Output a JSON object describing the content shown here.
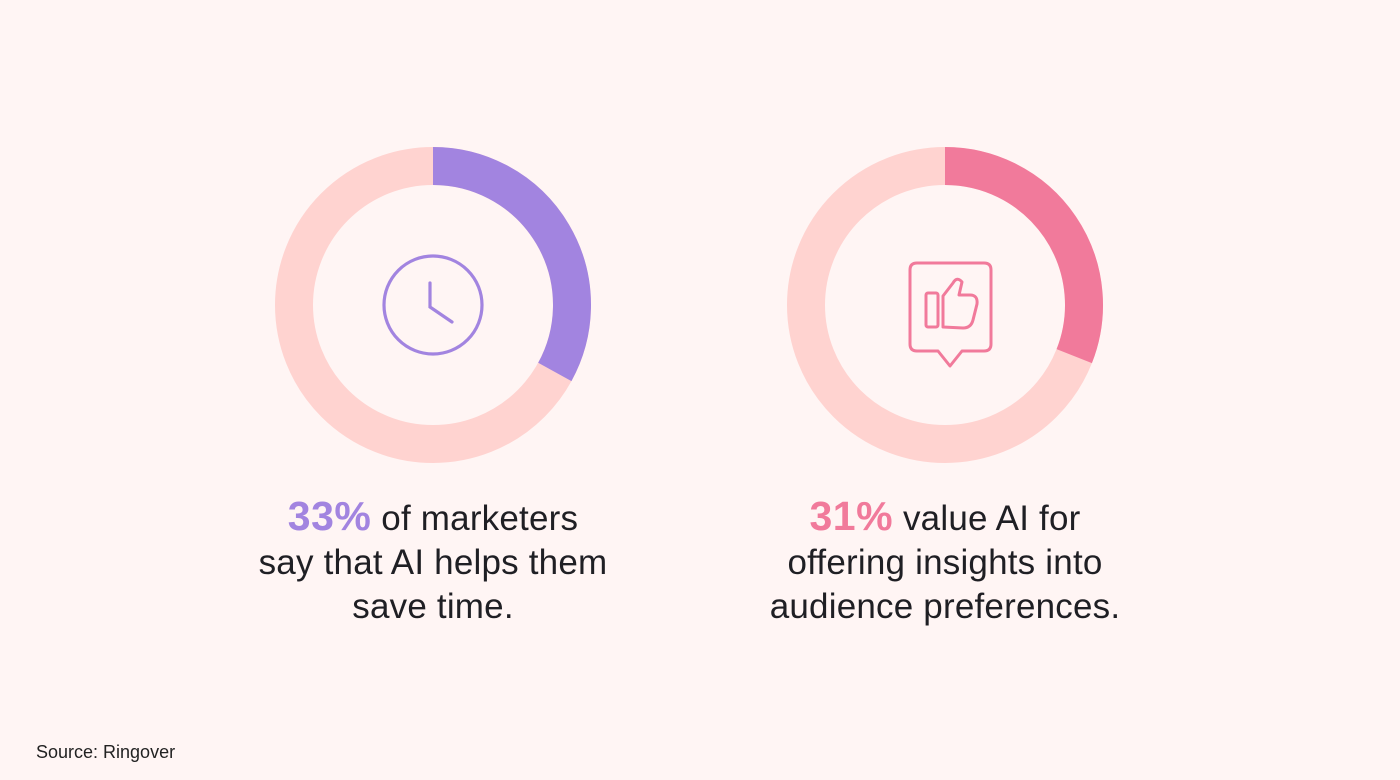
{
  "chart_data": [
    {
      "type": "pie",
      "value": 33,
      "categories": [
        "33%"
      ],
      "values": [
        33
      ],
      "accent_color": "#a284e0",
      "track_color": "#ffd3d0",
      "icon": "clock-icon",
      "text": {
        "percent": "33%",
        "line1_rest": " of marketers",
        "line2": "say that AI helps them",
        "line3": "save time."
      }
    },
    {
      "type": "pie",
      "value": 31,
      "categories": [
        "31%"
      ],
      "values": [
        31
      ],
      "accent_color": "#f17a9b",
      "track_color": "#ffd3d0",
      "icon": "thumbs-up-icon",
      "text": {
        "percent": "31%",
        "line1_rest": " value AI for",
        "line2": "offering insights into",
        "line3": "audience preferences."
      }
    }
  ],
  "source": "Source: Ringover"
}
